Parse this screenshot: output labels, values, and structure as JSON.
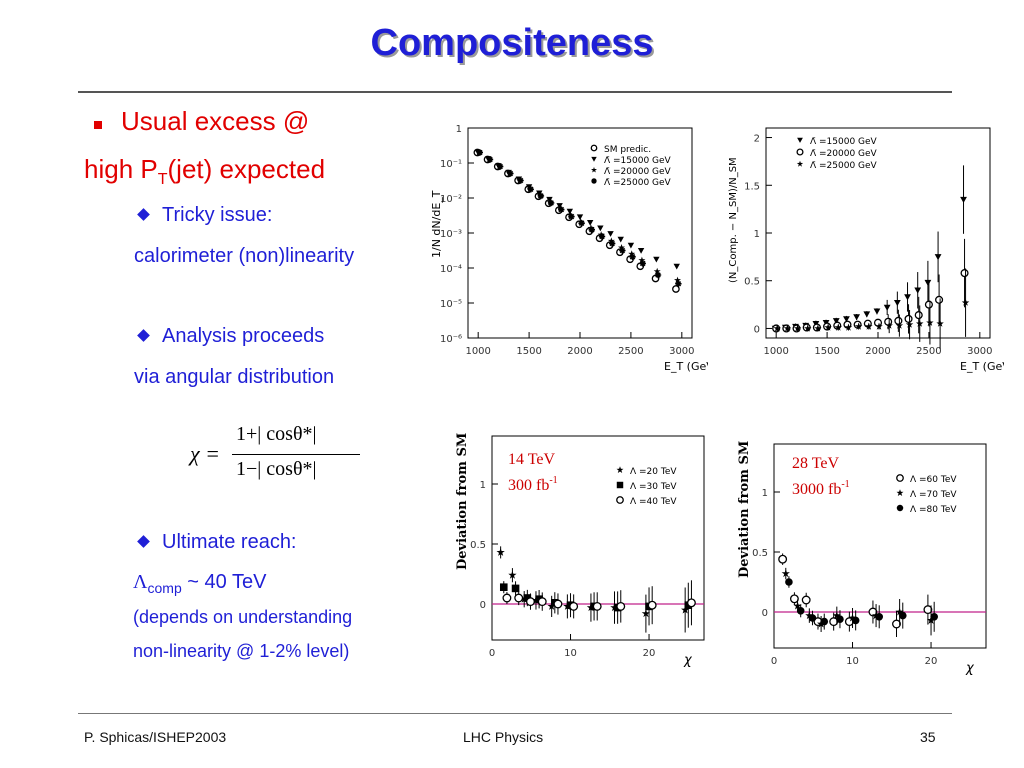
{
  "title": "Compositeness",
  "bullets": {
    "main_line1": "Usual excess @",
    "main_line2_pre": "high P",
    "main_line2_sub": "T",
    "main_line2_post": "(jet) expected",
    "tricky_label": "Tricky issue:",
    "tricky_detail": "calorimeter (non)linearity",
    "analysis_label": "Analysis proceeds",
    "analysis_detail": "via angular distribution",
    "formula_lhs": "χ =",
    "formula_num": "1+| cosθ*|",
    "formula_den": "1−| cosθ*|",
    "ultimate_label": "Ultimate reach:",
    "reach_symbol": "Λ",
    "reach_sub": "comp",
    "reach_value": " ~ 40 TeV",
    "note_line1": "(depends on understanding",
    "note_line2": "non-linearity @ 1-2% level)"
  },
  "footer": {
    "left": "P. Sphicas/ISHEP2003",
    "center": "LHC Physics",
    "right": "35"
  },
  "colors": {
    "title": "#1f1fd6",
    "bullet_main": "#e10000",
    "bullet_sub": "#1f1fd6",
    "annotation": "#cc0000",
    "reference_line": "#c0208a"
  },
  "chart_data": [
    {
      "type": "scatter",
      "title": "",
      "xlabel": "E_T (GeV)",
      "ylabel": "1/N dN/dE_T",
      "xlim": [
        900,
        3100
      ],
      "ylim_log10": [
        -6,
        0
      ],
      "yscale": "log",
      "xticks": [
        "1000",
        "1500",
        "2000",
        "2500",
        "3000"
      ],
      "yticks": [
        "1",
        "10⁻¹",
        "10⁻²",
        "10⁻³",
        "10⁻⁴",
        "10⁻⁵",
        "10⁻⁶"
      ],
      "legend_position": "top-right",
      "legend": [
        "SM predic.",
        "Λ̄ =15000 GeV",
        "Λ̄ =20000 GeV",
        "Λ̄ =25000 GeV"
      ],
      "x": [
        1000,
        1100,
        1200,
        1300,
        1400,
        1500,
        1600,
        1700,
        1800,
        1900,
        2000,
        2100,
        2200,
        2300,
        2400,
        2500,
        2600,
        2750,
        2950
      ],
      "series": [
        {
          "name": "SM predic.",
          "marker": "circle-open",
          "log10_y": [
            -0.7,
            -0.9,
            -1.1,
            -1.3,
            -1.5,
            -1.75,
            -1.95,
            -2.15,
            -2.35,
            -2.55,
            -2.75,
            -2.95,
            -3.15,
            -3.35,
            -3.55,
            -3.75,
            -3.95,
            -4.3,
            -4.6
          ]
        },
        {
          "name": "Λ̄ =15000 GeV",
          "marker": "triangle-down",
          "log10_y": [
            -0.7,
            -0.88,
            -1.08,
            -1.27,
            -1.46,
            -1.68,
            -1.86,
            -2.04,
            -2.22,
            -2.38,
            -2.54,
            -2.7,
            -2.86,
            -3.02,
            -3.18,
            -3.35,
            -3.5,
            -3.75,
            -3.95
          ]
        },
        {
          "name": "Λ̄ =20000 GeV",
          "marker": "star",
          "log10_y": [
            -0.7,
            -0.9,
            -1.1,
            -1.3,
            -1.5,
            -1.74,
            -1.93,
            -2.12,
            -2.31,
            -2.5,
            -2.68,
            -2.86,
            -3.05,
            -3.23,
            -3.42,
            -3.6,
            -3.78,
            -4.1,
            -4.35
          ]
        },
        {
          "name": "Λ̄ =25000 GeV",
          "marker": "asterisk",
          "log10_y": [
            -0.7,
            -0.9,
            -1.1,
            -1.3,
            -1.5,
            -1.75,
            -1.94,
            -2.14,
            -2.33,
            -2.53,
            -2.72,
            -2.91,
            -3.1,
            -3.3,
            -3.5,
            -3.68,
            -3.87,
            -4.2,
            -4.45
          ]
        }
      ]
    },
    {
      "type": "scatter",
      "title": "",
      "xlabel": "E_T (GeV)",
      "ylabel": "(N_Comp. − N_SM)/N_SM",
      "xlim": [
        900,
        3100
      ],
      "ylim": [
        -0.1,
        2.1
      ],
      "xticks": [
        "1000",
        "1500",
        "2000",
        "2500",
        "3000"
      ],
      "yticks": [
        "0",
        "0.5",
        "1",
        "1.5",
        "2"
      ],
      "legend_position": "top-right",
      "legend": [
        "Λ̄ =15000 GeV",
        "Λ̄ =20000 GeV",
        "Λ̄ =25000 GeV"
      ],
      "x": [
        1000,
        1100,
        1200,
        1300,
        1400,
        1500,
        1600,
        1700,
        1800,
        1900,
        2000,
        2100,
        2200,
        2300,
        2400,
        2500,
        2600,
        2850
      ],
      "series": [
        {
          "name": "Λ̄ =15000 GeV",
          "marker": "triangle-down",
          "y": [
            0.0,
            0.01,
            0.02,
            0.03,
            0.05,
            0.06,
            0.08,
            0.1,
            0.12,
            0.15,
            0.18,
            0.22,
            0.27,
            0.33,
            0.4,
            0.48,
            0.75,
            1.35
          ]
        },
        {
          "name": "Λ̄ =20000 GeV",
          "marker": "circle-open",
          "y": [
            0.0,
            0.0,
            0.0,
            0.01,
            0.01,
            0.02,
            0.03,
            0.04,
            0.04,
            0.05,
            0.06,
            0.07,
            0.08,
            0.1,
            0.14,
            0.25,
            0.3,
            0.58
          ]
        },
        {
          "name": "Λ̄ =25000 GeV",
          "marker": "star",
          "y": [
            0.0,
            0.0,
            0.0,
            0.0,
            0.0,
            0.01,
            0.01,
            0.01,
            0.02,
            0.02,
            0.02,
            0.03,
            0.03,
            0.04,
            0.05,
            0.06,
            0.05,
            0.27
          ]
        }
      ]
    },
    {
      "type": "scatter",
      "title": "",
      "xlabel": "χ",
      "ylabel": "Deviation from SM",
      "xlim": [
        0,
        27
      ],
      "ylim": [
        -0.3,
        1.4
      ],
      "xticks": [
        "0",
        "10",
        "20"
      ],
      "yticks": [
        "0",
        "0.5",
        "1"
      ],
      "annotation_line1": "14 TeV",
      "annotation_line2_pre": "300 fb",
      "annotation_line2_sup": "-1",
      "legend_position": "top-right",
      "legend": [
        "Λ =20 TeV",
        "Λ =30 TeV",
        "Λ =40 TeV"
      ],
      "x": [
        1.5,
        3,
        4.5,
        6,
        8,
        10,
        13,
        16,
        20,
        25
      ],
      "series": [
        {
          "name": "Λ =20 TeV",
          "marker": "star",
          "y": [
            0.43,
            0.24,
            0.04,
            0.03,
            -0.02,
            -0.02,
            -0.03,
            -0.03,
            -0.08,
            -0.05
          ]
        },
        {
          "name": "Λ =30 TeV",
          "marker": "square",
          "y": [
            0.14,
            0.13,
            0.05,
            0.04,
            0.01,
            -0.01,
            -0.02,
            -0.03,
            -0.02,
            -0.01
          ]
        },
        {
          "name": "Λ =40 TeV",
          "marker": "circle-open",
          "y": [
            0.05,
            0.05,
            0.02,
            0.02,
            0.0,
            -0.02,
            -0.02,
            -0.02,
            -0.01,
            0.01
          ]
        }
      ]
    },
    {
      "type": "scatter",
      "title": "",
      "xlabel": "χ",
      "ylabel": "Deviation from SM",
      "xlim": [
        0,
        27
      ],
      "ylim": [
        -0.3,
        1.4
      ],
      "xticks": [
        "0",
        "10",
        "20"
      ],
      "yticks": [
        "0",
        "0.5",
        "1"
      ],
      "annotation_line1": "28 TeV",
      "annotation_line2_pre": "3000 fb",
      "annotation_line2_sup": "-1",
      "legend_position": "top-right",
      "legend": [
        "Λ =60 TeV",
        "Λ =70 TeV",
        "Λ =80 TeV"
      ],
      "x": [
        1.5,
        3,
        4.5,
        6,
        8,
        10,
        13,
        16,
        20
      ],
      "series": [
        {
          "name": "Λ =60 TeV",
          "marker": "circle-open",
          "y": [
            0.44,
            0.11,
            0.1,
            -0.08,
            -0.08,
            -0.08,
            0.0,
            -0.1,
            0.02
          ]
        },
        {
          "name": "Λ =70 TeV",
          "marker": "star",
          "y": [
            0.32,
            0.05,
            -0.03,
            -0.1,
            -0.03,
            -0.05,
            -0.03,
            0.0,
            -0.07
          ]
        },
        {
          "name": "Λ =80 TeV",
          "marker": "circle-filled",
          "y": [
            0.25,
            0.01,
            -0.05,
            -0.08,
            -0.06,
            -0.07,
            -0.04,
            -0.03,
            -0.04
          ]
        }
      ]
    }
  ]
}
